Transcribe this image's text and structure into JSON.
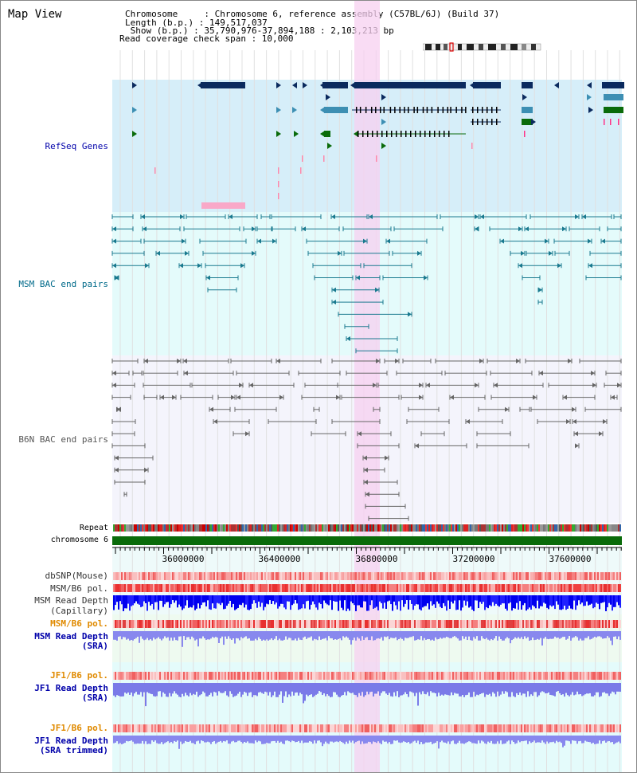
{
  "header": {
    "view_title": "Map View",
    "chromosome_line": "Chromosome     : Chromosome 6, reference assembly (C57BL/6J) (Build 37)",
    "length_line": "Length (b.p.) : 149,517,037",
    "show_line": " Show (b.p.) : 35,790,976-37,894,188 : 2,103,213 bp",
    "coverage_line": "Read coverage check span : 10,000"
  },
  "tracks": {
    "refseq_label": "RefSeq Genes",
    "msm_bac_label": "MSM BAC end pairs",
    "b6n_bac_label": "B6N BAC end pairs",
    "repeat_label": "Repeat",
    "chromosome_label": "chromosome 6",
    "dbsnp_label": "dbSNP(Mouse)",
    "msm_b6_pol_label_1": "MSM/B6 pol.",
    "msm_read_depth_cap_label_1": "MSM Read Depth",
    "msm_read_depth_cap_label_2": "(Capillary)",
    "msm_b6_pol_label_2": "MSM/B6 pol.",
    "msm_read_depth_sra_label_1": "MSM Read Depth",
    "msm_read_depth_sra_label_2": "(SRA)",
    "jf1_b6_pol_label_1": "JF1/B6 pol.",
    "jf1_read_depth_sra_label_1": "JF1 Read Depth",
    "jf1_read_depth_sra_label_2": "(SRA)",
    "jf1_b6_pol_label_2": "JF1/B6 pol.",
    "jf1_read_depth_trim_label_1": "JF1 Read Depth",
    "jf1_read_depth_trim_label_2": "(SRA trimmed)"
  },
  "axis": {
    "ticks": [
      "36000000",
      "36400000",
      "36800000",
      "37200000",
      "37600000"
    ]
  },
  "colors": {
    "refseq_bg": "#d6eef9",
    "msm_bg": "#e4fbfb",
    "b6n_bg": "#f4f4fc",
    "highlight": "#f7d0f0",
    "gene_dark": "#0b2a5e",
    "gene_mid": "#3d8fb3",
    "gene_green": "#0a6b0a",
    "msm_line": "#1a7a8f",
    "b6n_line": "#666666",
    "chrom_bar": "#0a6b0a",
    "label_blue": "#0000aa",
    "label_orange": "#e08a00",
    "label_teal": "#006a8a"
  }
}
